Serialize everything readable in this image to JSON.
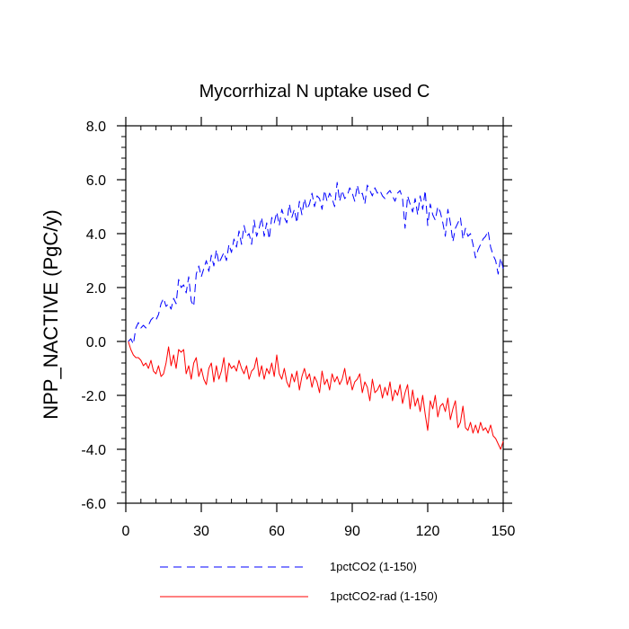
{
  "chart_data": {
    "type": "line",
    "title": "Mycorrhizal N uptake used C",
    "xlabel": "",
    "ylabel": "NPP_NACTIVE  (PgC/y)",
    "xlim": [
      0,
      150
    ],
    "ylim": [
      -6.0,
      8.0
    ],
    "x_ticks": [
      0,
      30,
      60,
      90,
      120,
      150
    ],
    "x_tick_labels": [
      "0",
      "30",
      "60",
      "90",
      "120",
      "150"
    ],
    "y_ticks": [
      -6,
      -4,
      -2,
      0,
      2,
      4,
      6,
      8
    ],
    "y_tick_labels": [
      "-6.0",
      "-4.0",
      "-2.0",
      "0.0",
      "2.0",
      "4.0",
      "6.0",
      "8.0"
    ],
    "x_minor_step": 6,
    "y_minor_step": 0.4,
    "grid": false,
    "legend_position": "bottom",
    "series": [
      {
        "name": "1pctCO2 (1-150)",
        "color": "#0000ff",
        "dash": "dashed",
        "x": [
          1,
          2,
          3,
          4,
          5,
          6,
          7,
          8,
          9,
          10,
          11,
          12,
          13,
          14,
          15,
          16,
          17,
          18,
          19,
          20,
          21,
          22,
          23,
          24,
          25,
          26,
          27,
          28,
          29,
          30,
          31,
          32,
          33,
          34,
          35,
          36,
          37,
          38,
          39,
          40,
          41,
          42,
          43,
          44,
          45,
          46,
          47,
          48,
          49,
          50,
          51,
          52,
          53,
          54,
          55,
          56,
          57,
          58,
          59,
          60,
          61,
          62,
          63,
          64,
          65,
          66,
          67,
          68,
          69,
          70,
          71,
          72,
          73,
          74,
          75,
          76,
          77,
          78,
          79,
          80,
          81,
          82,
          83,
          84,
          85,
          86,
          87,
          88,
          89,
          90,
          91,
          92,
          93,
          94,
          95,
          96,
          97,
          98,
          99,
          100,
          101,
          102,
          103,
          104,
          105,
          106,
          107,
          108,
          109,
          110,
          111,
          112,
          113,
          114,
          115,
          116,
          117,
          118,
          119,
          120,
          121,
          122,
          123,
          124,
          125,
          126,
          127,
          128,
          129,
          130,
          131,
          132,
          133,
          134,
          135,
          136,
          137,
          138,
          139,
          140,
          141,
          142,
          143,
          144,
          145,
          146,
          147,
          148,
          149,
          150
        ],
        "y": [
          0.0,
          0.1,
          -0.1,
          0.5,
          0.7,
          0.5,
          0.6,
          0.5,
          0.6,
          0.8,
          0.9,
          0.8,
          1.0,
          1.4,
          1.6,
          1.3,
          1.4,
          1.2,
          1.6,
          1.4,
          2.3,
          2.0,
          2.1,
          1.8,
          2.4,
          1.5,
          1.3,
          2.5,
          2.8,
          2.4,
          2.7,
          3.0,
          2.6,
          3.2,
          2.8,
          3.4,
          2.9,
          3.1,
          3.3,
          3.0,
          3.6,
          3.3,
          3.8,
          3.5,
          4.1,
          3.6,
          4.3,
          3.9,
          4.0,
          3.6,
          4.5,
          3.9,
          4.2,
          4.6,
          3.9,
          4.4,
          3.8,
          4.6,
          4.4,
          4.8,
          4.3,
          4.9,
          4.6,
          4.4,
          5.1,
          4.6,
          4.9,
          4.4,
          5.2,
          4.7,
          5.3,
          4.9,
          5.1,
          5.5,
          5.0,
          5.4,
          5.3,
          4.9,
          5.6,
          5.2,
          5.5,
          5.3,
          5.0,
          5.9,
          5.2,
          5.6,
          5.3,
          5.4,
          5.7,
          5.5,
          5.2,
          5.8,
          5.4,
          5.5,
          5.1,
          5.8,
          5.6,
          5.4,
          5.7,
          5.5,
          5.6,
          5.4,
          5.3,
          5.5,
          5.6,
          5.4,
          5.2,
          5.5,
          5.6,
          5.3,
          4.2,
          5.4,
          5.1,
          4.8,
          5.3,
          4.7,
          5.4,
          4.9,
          5.6,
          4.3,
          5.1,
          4.7,
          4.5,
          5.0,
          4.8,
          4.4,
          3.9,
          4.9,
          4.4,
          3.7,
          4.2,
          4.4,
          4.6,
          3.8,
          4.2,
          3.9,
          4.0,
          3.6,
          3.1,
          3.4,
          3.6,
          3.8,
          3.9,
          4.1,
          3.5,
          3.2,
          3.0,
          2.5,
          3.1,
          2.7
        ]
      },
      {
        "name": "1pctCO2-rad (1-150)",
        "color": "#ff0000",
        "dash": "solid",
        "x": [
          1,
          2,
          3,
          4,
          5,
          6,
          7,
          8,
          9,
          10,
          11,
          12,
          13,
          14,
          15,
          16,
          17,
          18,
          19,
          20,
          21,
          22,
          23,
          24,
          25,
          26,
          27,
          28,
          29,
          30,
          31,
          32,
          33,
          34,
          35,
          36,
          37,
          38,
          39,
          40,
          41,
          42,
          43,
          44,
          45,
          46,
          47,
          48,
          49,
          50,
          51,
          52,
          53,
          54,
          55,
          56,
          57,
          58,
          59,
          60,
          61,
          62,
          63,
          64,
          65,
          66,
          67,
          68,
          69,
          70,
          71,
          72,
          73,
          74,
          75,
          76,
          77,
          78,
          79,
          80,
          81,
          82,
          83,
          84,
          85,
          86,
          87,
          88,
          89,
          90,
          91,
          92,
          93,
          94,
          95,
          96,
          97,
          98,
          99,
          100,
          101,
          102,
          103,
          104,
          105,
          106,
          107,
          108,
          109,
          110,
          111,
          112,
          113,
          114,
          115,
          116,
          117,
          118,
          119,
          120,
          121,
          122,
          123,
          124,
          125,
          126,
          127,
          128,
          129,
          130,
          131,
          132,
          133,
          134,
          135,
          136,
          137,
          138,
          139,
          140,
          141,
          142,
          143,
          144,
          145,
          146,
          147,
          148,
          149,
          150
        ],
        "y": [
          0.0,
          -0.3,
          -0.5,
          -0.6,
          -0.6,
          -0.7,
          -0.9,
          -0.8,
          -1.0,
          -0.7,
          -1.1,
          -1.2,
          -0.9,
          -1.3,
          -1.2,
          -0.8,
          -0.2,
          -0.9,
          -0.5,
          -1.0,
          -0.3,
          -0.4,
          -0.3,
          -1.2,
          -0.9,
          -1.4,
          -0.8,
          -0.6,
          -1.3,
          -1.0,
          -1.4,
          -1.6,
          -1.0,
          -0.8,
          -1.5,
          -0.9,
          -1.4,
          -1.1,
          -0.6,
          -1.5,
          -0.8,
          -1.0,
          -0.9,
          -1.1,
          -0.7,
          -1.0,
          -1.2,
          -0.9,
          -1.4,
          -1.1,
          -1.0,
          -0.6,
          -1.3,
          -0.9,
          -1.4,
          -1.0,
          -1.2,
          -0.8,
          -1.3,
          -0.5,
          -1.2,
          -1.4,
          -1.0,
          -1.5,
          -1.7,
          -1.2,
          -1.5,
          -1.1,
          -1.8,
          -1.3,
          -1.0,
          -1.4,
          -1.2,
          -1.7,
          -1.3,
          -1.5,
          -1.9,
          -1.1,
          -1.6,
          -1.4,
          -1.8,
          -1.2,
          -1.5,
          -1.3,
          -1.6,
          -1.4,
          -1.0,
          -1.6,
          -1.3,
          -1.8,
          -1.5,
          -1.4,
          -1.2,
          -1.9,
          -1.5,
          -1.7,
          -2.2,
          -1.4,
          -1.9,
          -1.8,
          -1.6,
          -2.1,
          -1.7,
          -2.0,
          -1.5,
          -2.2,
          -1.8,
          -2.0,
          -1.6,
          -2.3,
          -1.9,
          -1.6,
          -2.5,
          -1.8,
          -2.4,
          -2.1,
          -2.6,
          -2.0,
          -2.7,
          -3.3,
          -2.2,
          -2.5,
          -2.0,
          -2.8,
          -2.4,
          -2.3,
          -2.6,
          -2.1,
          -2.9,
          -2.5,
          -2.2,
          -3.2,
          -3.0,
          -2.4,
          -3.2,
          -3.3,
          -3.0,
          -3.4,
          -3.1,
          -3.4,
          -3.0,
          -3.3,
          -3.2,
          -3.4,
          -3.1,
          -3.5,
          -3.6,
          -3.8,
          -4.0,
          -3.7
        ]
      }
    ]
  }
}
